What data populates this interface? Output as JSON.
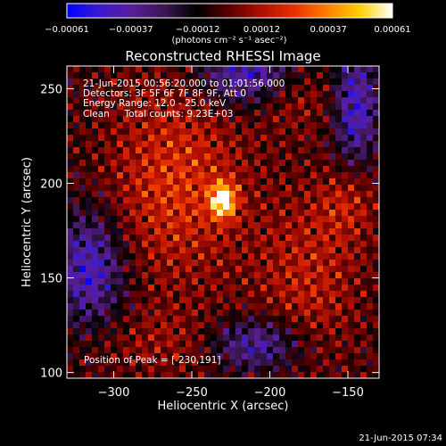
{
  "chart_data": {
    "type": "heatmap",
    "title": "Reconstructed RHESSI Image",
    "xlabel": "Heliocentric X (arcsec)",
    "ylabel": "Heliocentric Y (arcsec)",
    "xlim": [
      -330,
      -130
    ],
    "ylim": [
      97,
      262
    ],
    "xticks": [
      -300,
      -250,
      -200,
      -150
    ],
    "yticks": [
      100,
      150,
      200,
      250
    ],
    "x_tick_labels": [
      "−300",
      "−250",
      "−200",
      "−150"
    ],
    "y_tick_labels": [
      "100",
      "150",
      "200",
      "250"
    ],
    "peak": {
      "x": -230,
      "y": 191
    },
    "colorbar": {
      "range": [
        -0.00061,
        0.00061
      ],
      "tick_values": [
        -0.00061,
        -0.00037,
        -0.00012,
        0.00012,
        0.00037,
        0.00061
      ],
      "tick_labels": [
        "−0.00061",
        "−0.00037",
        "−0.00012",
        "0.00012",
        "0.00037",
        "0.00061"
      ],
      "unit_label": "(photons cm⁻² s⁻¹ asec⁻²)",
      "colors": [
        "#0000ff",
        "#3a1ad0",
        "#5a1e9a",
        "#3a1650",
        "#000000",
        "#5a0000",
        "#b01000",
        "#e83000",
        "#ff8000",
        "#ffd000",
        "#ffffff"
      ]
    },
    "annotations": {
      "time_range": "21-Jun-2015 00:56:20.000 to 01:01:56.000",
      "detectors": "Detectors: 3F 5F 6F 7F 8F 9F, Att 0",
      "energy": "Energy Range: 12.0 - 25.0 keV",
      "clean": "Clean     Total counts: 9.23E+03",
      "peak_text": "Position of Peak = [-230,191]"
    },
    "footer_timestamp": "21-Jun-2015 07:34"
  }
}
